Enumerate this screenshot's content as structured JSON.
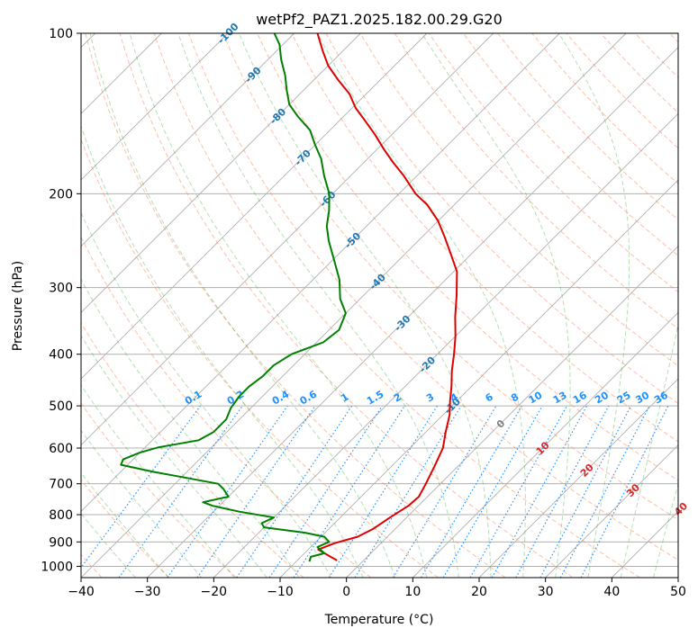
{
  "chart_data": {
    "type": "line",
    "subtype": "skew-T log-P diagram",
    "title": "wetPf2_PAZ1.2025.182.00.29.G20",
    "xlabel": "Temperature (°C)",
    "ylabel": "Pressure (hPa)",
    "xlim": [
      -40,
      50
    ],
    "ylim": [
      1050,
      100
    ],
    "y_scale": "log",
    "x_ticks": [
      -40,
      -30,
      -20,
      -10,
      0,
      10,
      20,
      30,
      40,
      50
    ],
    "y_ticks": [
      1000,
      900,
      800,
      700,
      600,
      500,
      400,
      300,
      200,
      100
    ],
    "grid": true,
    "series": [
      {
        "role": "temperature",
        "color": "#e00000",
        "points": [
          [
            -4.0,
            975
          ],
          [
            -6.0,
            955
          ],
          [
            -8.5,
            930
          ],
          [
            -7.0,
            905
          ],
          [
            -4.5,
            880
          ],
          [
            -3.3,
            850
          ],
          [
            -2.5,
            810
          ],
          [
            -1.5,
            770
          ],
          [
            -1.3,
            740
          ],
          [
            -2.2,
            700
          ],
          [
            -3.5,
            650
          ],
          [
            -5.0,
            600
          ],
          [
            -7.0,
            560
          ],
          [
            -9.0,
            520
          ],
          [
            -11.0,
            490
          ],
          [
            -13.0,
            460
          ],
          [
            -15.3,
            430
          ],
          [
            -17.5,
            400
          ],
          [
            -20.0,
            370
          ],
          [
            -23.0,
            340
          ],
          [
            -26.0,
            310
          ],
          [
            -29.5,
            280
          ],
          [
            -33.0,
            260
          ],
          [
            -36.8,
            240
          ],
          [
            -40.0,
            225
          ],
          [
            -44.0,
            210
          ],
          [
            -47.5,
            200
          ],
          [
            -52.0,
            185
          ],
          [
            -55.5,
            175
          ],
          [
            -59.0,
            165
          ],
          [
            -62.5,
            155
          ],
          [
            -66.5,
            145
          ],
          [
            -69.5,
            138
          ],
          [
            -72.5,
            130
          ],
          [
            -76.5,
            122
          ],
          [
            -80.0,
            115
          ],
          [
            -83.0,
            108
          ],
          [
            -86.5,
            100
          ]
        ]
      },
      {
        "role": "dewpoint",
        "color": "#008000",
        "points": [
          [
            -8.0,
            980
          ],
          [
            -8.5,
            960
          ],
          [
            -7.0,
            945
          ],
          [
            -9.0,
            920
          ],
          [
            -8.0,
            900
          ],
          [
            -9.5,
            880
          ],
          [
            -13.0,
            865
          ],
          [
            -20.0,
            845
          ],
          [
            -21.0,
            830
          ],
          [
            -20.0,
            810
          ],
          [
            -26.0,
            790
          ],
          [
            -31.0,
            770
          ],
          [
            -33.0,
            758
          ],
          [
            -30.0,
            740
          ],
          [
            -32.0,
            715
          ],
          [
            -33.5,
            700
          ],
          [
            -40.0,
            680
          ],
          [
            -45.0,
            665
          ],
          [
            -51.0,
            645
          ],
          [
            -51.5,
            630
          ],
          [
            -50.0,
            612
          ],
          [
            -48.0,
            598
          ],
          [
            -43.0,
            580
          ],
          [
            -42.0,
            560
          ],
          [
            -42.0,
            530
          ],
          [
            -43.0,
            505
          ],
          [
            -43.5,
            480
          ],
          [
            -43.5,
            460
          ],
          [
            -43.0,
            440
          ],
          [
            -43.0,
            420
          ],
          [
            -42.0,
            400
          ],
          [
            -39.0,
            380
          ],
          [
            -38.5,
            360
          ],
          [
            -40.0,
            335
          ],
          [
            -43.0,
            315
          ],
          [
            -46.0,
            290
          ],
          [
            -50.0,
            265
          ],
          [
            -53.5,
            245
          ],
          [
            -56.0,
            230
          ],
          [
            -58.0,
            215
          ],
          [
            -60.5,
            200
          ],
          [
            -64.0,
            185
          ],
          [
            -67.0,
            172
          ],
          [
            -70.0,
            162
          ],
          [
            -73.0,
            152
          ],
          [
            -77.0,
            143
          ],
          [
            -80.0,
            136
          ],
          [
            -82.5,
            128
          ],
          [
            -85.0,
            120
          ],
          [
            -88.0,
            112
          ],
          [
            -90.5,
            105
          ],
          [
            -93.0,
            100
          ]
        ]
      }
    ],
    "isotherm_labels": [
      "-100",
      "-90",
      "-80",
      "-70",
      "-60",
      "-50",
      "-40",
      "-30",
      "-20",
      "-10",
      "0",
      "10",
      "20",
      "30",
      "40"
    ],
    "mixing_ratio_labels": [
      "0.1",
      "0.2",
      "0.4",
      "0.6",
      "1",
      "1.5",
      "2",
      "3",
      "4",
      "6",
      "8",
      "10",
      "13",
      "16",
      "20",
      "25",
      "30",
      "36"
    ],
    "colors": {
      "temperature": "#e00000",
      "dewpoint": "#008000",
      "isotherm_label_cold": "#1f77b4",
      "isotherm_label_warm": "#d62728",
      "isotherm_label_zero": "#7f7f7f",
      "mixing_ratio": "#1e90ff",
      "dry_adiabat": "#ff7f50",
      "moist_adiabat": "#2ca02c",
      "grid": "#b0b0b0"
    }
  }
}
